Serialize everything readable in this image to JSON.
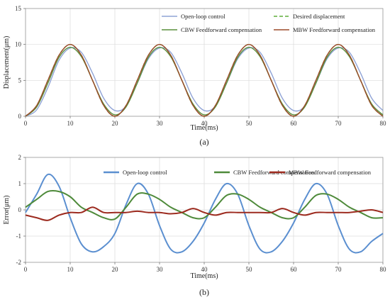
{
  "chart_data": [
    {
      "panel": "(a)",
      "type": "line",
      "xlabel": "Time(ms)",
      "ylabel": "Displacement(μm)",
      "xlim": [
        0,
        80
      ],
      "ylim": [
        0,
        15
      ],
      "xticks": [
        0,
        10,
        20,
        30,
        40,
        50,
        60,
        70,
        80
      ],
      "yticks": [
        0,
        5,
        10,
        15
      ],
      "grid": true,
      "legend_placement": "top-right",
      "x": [
        0,
        2.5,
        5,
        7.5,
        10,
        12.5,
        15,
        17.5,
        20,
        22.5,
        25,
        27.5,
        30,
        32.5,
        35,
        37.5,
        40,
        42.5,
        45,
        47.5,
        50,
        52.5,
        55,
        57.5,
        60,
        62.5,
        65,
        67.5,
        70,
        72.5,
        75,
        77.5,
        80
      ],
      "series": [
        {
          "name": "Open-loop control",
          "color": "#8fa3d6",
          "dash": "solid",
          "values": [
            0.0,
            0.9,
            4.0,
            7.8,
            9.5,
            8.9,
            6.0,
            2.5,
            0.8,
            1.4,
            4.6,
            8.0,
            9.5,
            8.9,
            6.0,
            2.5,
            0.8,
            1.4,
            4.6,
            8.0,
            9.5,
            8.9,
            6.0,
            2.5,
            0.8,
            1.4,
            4.6,
            8.0,
            9.5,
            8.9,
            6.0,
            2.5,
            0.8
          ]
        },
        {
          "name": "Desired displacement",
          "color": "#5fae3a",
          "dash": "dashed",
          "values": [
            0.0,
            1.5,
            5.0,
            8.5,
            10.0,
            8.5,
            5.0,
            1.5,
            0.0,
            1.5,
            5.0,
            8.5,
            10.0,
            8.5,
            5.0,
            1.5,
            0.0,
            1.5,
            5.0,
            8.5,
            10.0,
            8.5,
            5.0,
            1.5,
            0.0,
            1.5,
            5.0,
            8.5,
            10.0,
            8.5,
            5.0,
            1.5,
            0.0
          ]
        },
        {
          "name": "CBW Feedforward compensation",
          "color": "#5a8f3c",
          "dash": "solid",
          "values": [
            0.0,
            1.3,
            4.6,
            8.2,
            9.6,
            8.3,
            5.0,
            1.7,
            0.2,
            1.3,
            4.6,
            8.2,
            9.6,
            8.3,
            5.0,
            1.7,
            0.2,
            1.3,
            4.6,
            8.2,
            9.6,
            8.3,
            5.0,
            1.7,
            0.2,
            1.3,
            4.6,
            8.2,
            9.6,
            8.3,
            5.0,
            1.7,
            0.2
          ]
        },
        {
          "name": "MBW Feedforward compensation",
          "color": "#9c4a2a",
          "dash": "solid",
          "values": [
            0.0,
            1.5,
            5.0,
            8.5,
            10.0,
            8.5,
            5.0,
            1.5,
            0.0,
            1.5,
            5.0,
            8.5,
            10.0,
            8.5,
            5.0,
            1.5,
            0.0,
            1.5,
            5.0,
            8.5,
            10.0,
            8.5,
            5.0,
            1.5,
            0.0,
            1.5,
            5.0,
            8.5,
            10.0,
            8.5,
            5.0,
            1.5,
            0.0
          ]
        }
      ]
    },
    {
      "panel": "(b)",
      "type": "line",
      "xlabel": "Time(ms)",
      "ylabel": "Error(μm)",
      "xlim": [
        0,
        80
      ],
      "ylim": [
        -2,
        2
      ],
      "xticks": [
        0,
        10,
        20,
        30,
        40,
        50,
        60,
        70,
        80
      ],
      "yticks": [
        -2,
        -1,
        0,
        1,
        2
      ],
      "grid": true,
      "legend_placement": "top",
      "x": [
        0,
        2.5,
        5,
        7.5,
        10,
        12.5,
        15,
        17.5,
        20,
        22.5,
        25,
        27.5,
        30,
        32.5,
        35,
        37.5,
        40,
        42.5,
        45,
        47.5,
        50,
        52.5,
        55,
        57.5,
        60,
        62.5,
        65,
        67.5,
        70,
        72.5,
        75,
        77.5,
        80
      ],
      "series": [
        {
          "name": "Open-loop control",
          "color": "#5b8fd0",
          "dash": "solid",
          "values": [
            -0.1,
            0.6,
            1.35,
            0.9,
            -0.3,
            -1.3,
            -1.6,
            -1.4,
            -0.9,
            0.2,
            1.0,
            0.6,
            -0.6,
            -1.5,
            -1.6,
            -1.2,
            -0.5,
            0.4,
            1.0,
            0.6,
            -0.6,
            -1.5,
            -1.6,
            -1.2,
            -0.5,
            0.4,
            1.0,
            0.6,
            -0.6,
            -1.5,
            -1.6,
            -1.2,
            -0.9
          ]
        },
        {
          "name": "CBW Feedforward compensation",
          "color": "#4e8a3a",
          "dash": "solid",
          "values": [
            0.1,
            0.4,
            0.7,
            0.7,
            0.5,
            0.1,
            -0.1,
            -0.3,
            -0.35,
            0.1,
            0.6,
            0.6,
            0.4,
            0.1,
            -0.1,
            -0.3,
            -0.3,
            0.1,
            0.55,
            0.6,
            0.4,
            0.1,
            -0.1,
            -0.3,
            -0.3,
            0.1,
            0.55,
            0.6,
            0.4,
            0.1,
            -0.1,
            -0.3,
            -0.3
          ]
        },
        {
          "name": "MBW Feedforward compensation",
          "color": "#9c2a1e",
          "dash": "solid",
          "values": [
            -0.2,
            -0.3,
            -0.4,
            -0.2,
            -0.1,
            -0.1,
            0.1,
            -0.1,
            -0.1,
            -0.1,
            -0.05,
            -0.1,
            -0.1,
            -0.15,
            -0.1,
            0.05,
            -0.1,
            -0.2,
            -0.1,
            -0.1,
            -0.1,
            -0.1,
            -0.1,
            0.05,
            -0.1,
            -0.2,
            -0.1,
            -0.1,
            -0.1,
            -0.1,
            -0.05,
            0.0,
            -0.1
          ]
        }
      ]
    }
  ]
}
